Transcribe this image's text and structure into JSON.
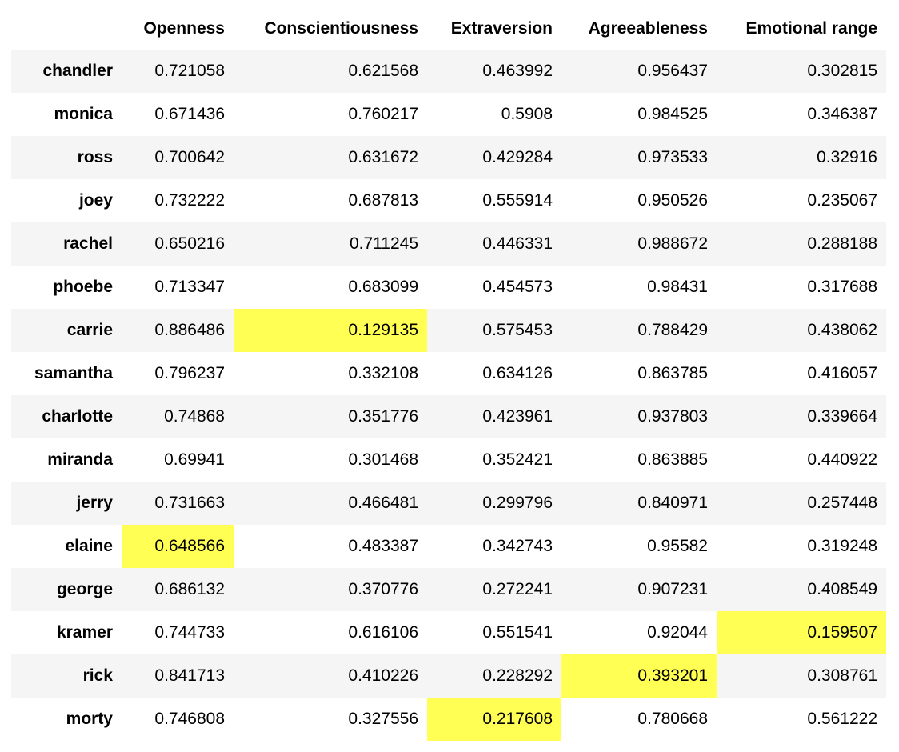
{
  "table": {
    "highlight_color": "#ffff54",
    "columns": [
      "",
      "Openness",
      "Conscientiousness",
      "Extraversion",
      "Agreeableness",
      "Emotional range"
    ],
    "rows": [
      {
        "name": "chandler",
        "values": [
          "0.721058",
          "0.621568",
          "0.463992",
          "0.956437",
          "0.302815"
        ],
        "highlight": []
      },
      {
        "name": "monica",
        "values": [
          "0.671436",
          "0.760217",
          "0.5908",
          "0.984525",
          "0.346387"
        ],
        "highlight": []
      },
      {
        "name": "ross",
        "values": [
          "0.700642",
          "0.631672",
          "0.429284",
          "0.973533",
          "0.32916"
        ],
        "highlight": []
      },
      {
        "name": "joey",
        "values": [
          "0.732222",
          "0.687813",
          "0.555914",
          "0.950526",
          "0.235067"
        ],
        "highlight": []
      },
      {
        "name": "rachel",
        "values": [
          "0.650216",
          "0.711245",
          "0.446331",
          "0.988672",
          "0.288188"
        ],
        "highlight": []
      },
      {
        "name": "phoebe",
        "values": [
          "0.713347",
          "0.683099",
          "0.454573",
          "0.98431",
          "0.317688"
        ],
        "highlight": []
      },
      {
        "name": "carrie",
        "values": [
          "0.886486",
          "0.129135",
          "0.575453",
          "0.788429",
          "0.438062"
        ],
        "highlight": [
          1
        ]
      },
      {
        "name": "samantha",
        "values": [
          "0.796237",
          "0.332108",
          "0.634126",
          "0.863785",
          "0.416057"
        ],
        "highlight": []
      },
      {
        "name": "charlotte",
        "values": [
          "0.74868",
          "0.351776",
          "0.423961",
          "0.937803",
          "0.339664"
        ],
        "highlight": []
      },
      {
        "name": "miranda",
        "values": [
          "0.69941",
          "0.301468",
          "0.352421",
          "0.863885",
          "0.440922"
        ],
        "highlight": []
      },
      {
        "name": "jerry",
        "values": [
          "0.731663",
          "0.466481",
          "0.299796",
          "0.840971",
          "0.257448"
        ],
        "highlight": []
      },
      {
        "name": "elaine",
        "values": [
          "0.648566",
          "0.483387",
          "0.342743",
          "0.95582",
          "0.319248"
        ],
        "highlight": [
          0
        ]
      },
      {
        "name": "george",
        "values": [
          "0.686132",
          "0.370776",
          "0.272241",
          "0.907231",
          "0.408549"
        ],
        "highlight": []
      },
      {
        "name": "kramer",
        "values": [
          "0.744733",
          "0.616106",
          "0.551541",
          "0.92044",
          "0.159507"
        ],
        "highlight": [
          4
        ]
      },
      {
        "name": "rick",
        "values": [
          "0.841713",
          "0.410226",
          "0.228292",
          "0.393201",
          "0.308761"
        ],
        "highlight": [
          3
        ]
      },
      {
        "name": "morty",
        "values": [
          "0.746808",
          "0.327556",
          "0.217608",
          "0.780668",
          "0.561222"
        ],
        "highlight": [
          2
        ]
      }
    ]
  }
}
